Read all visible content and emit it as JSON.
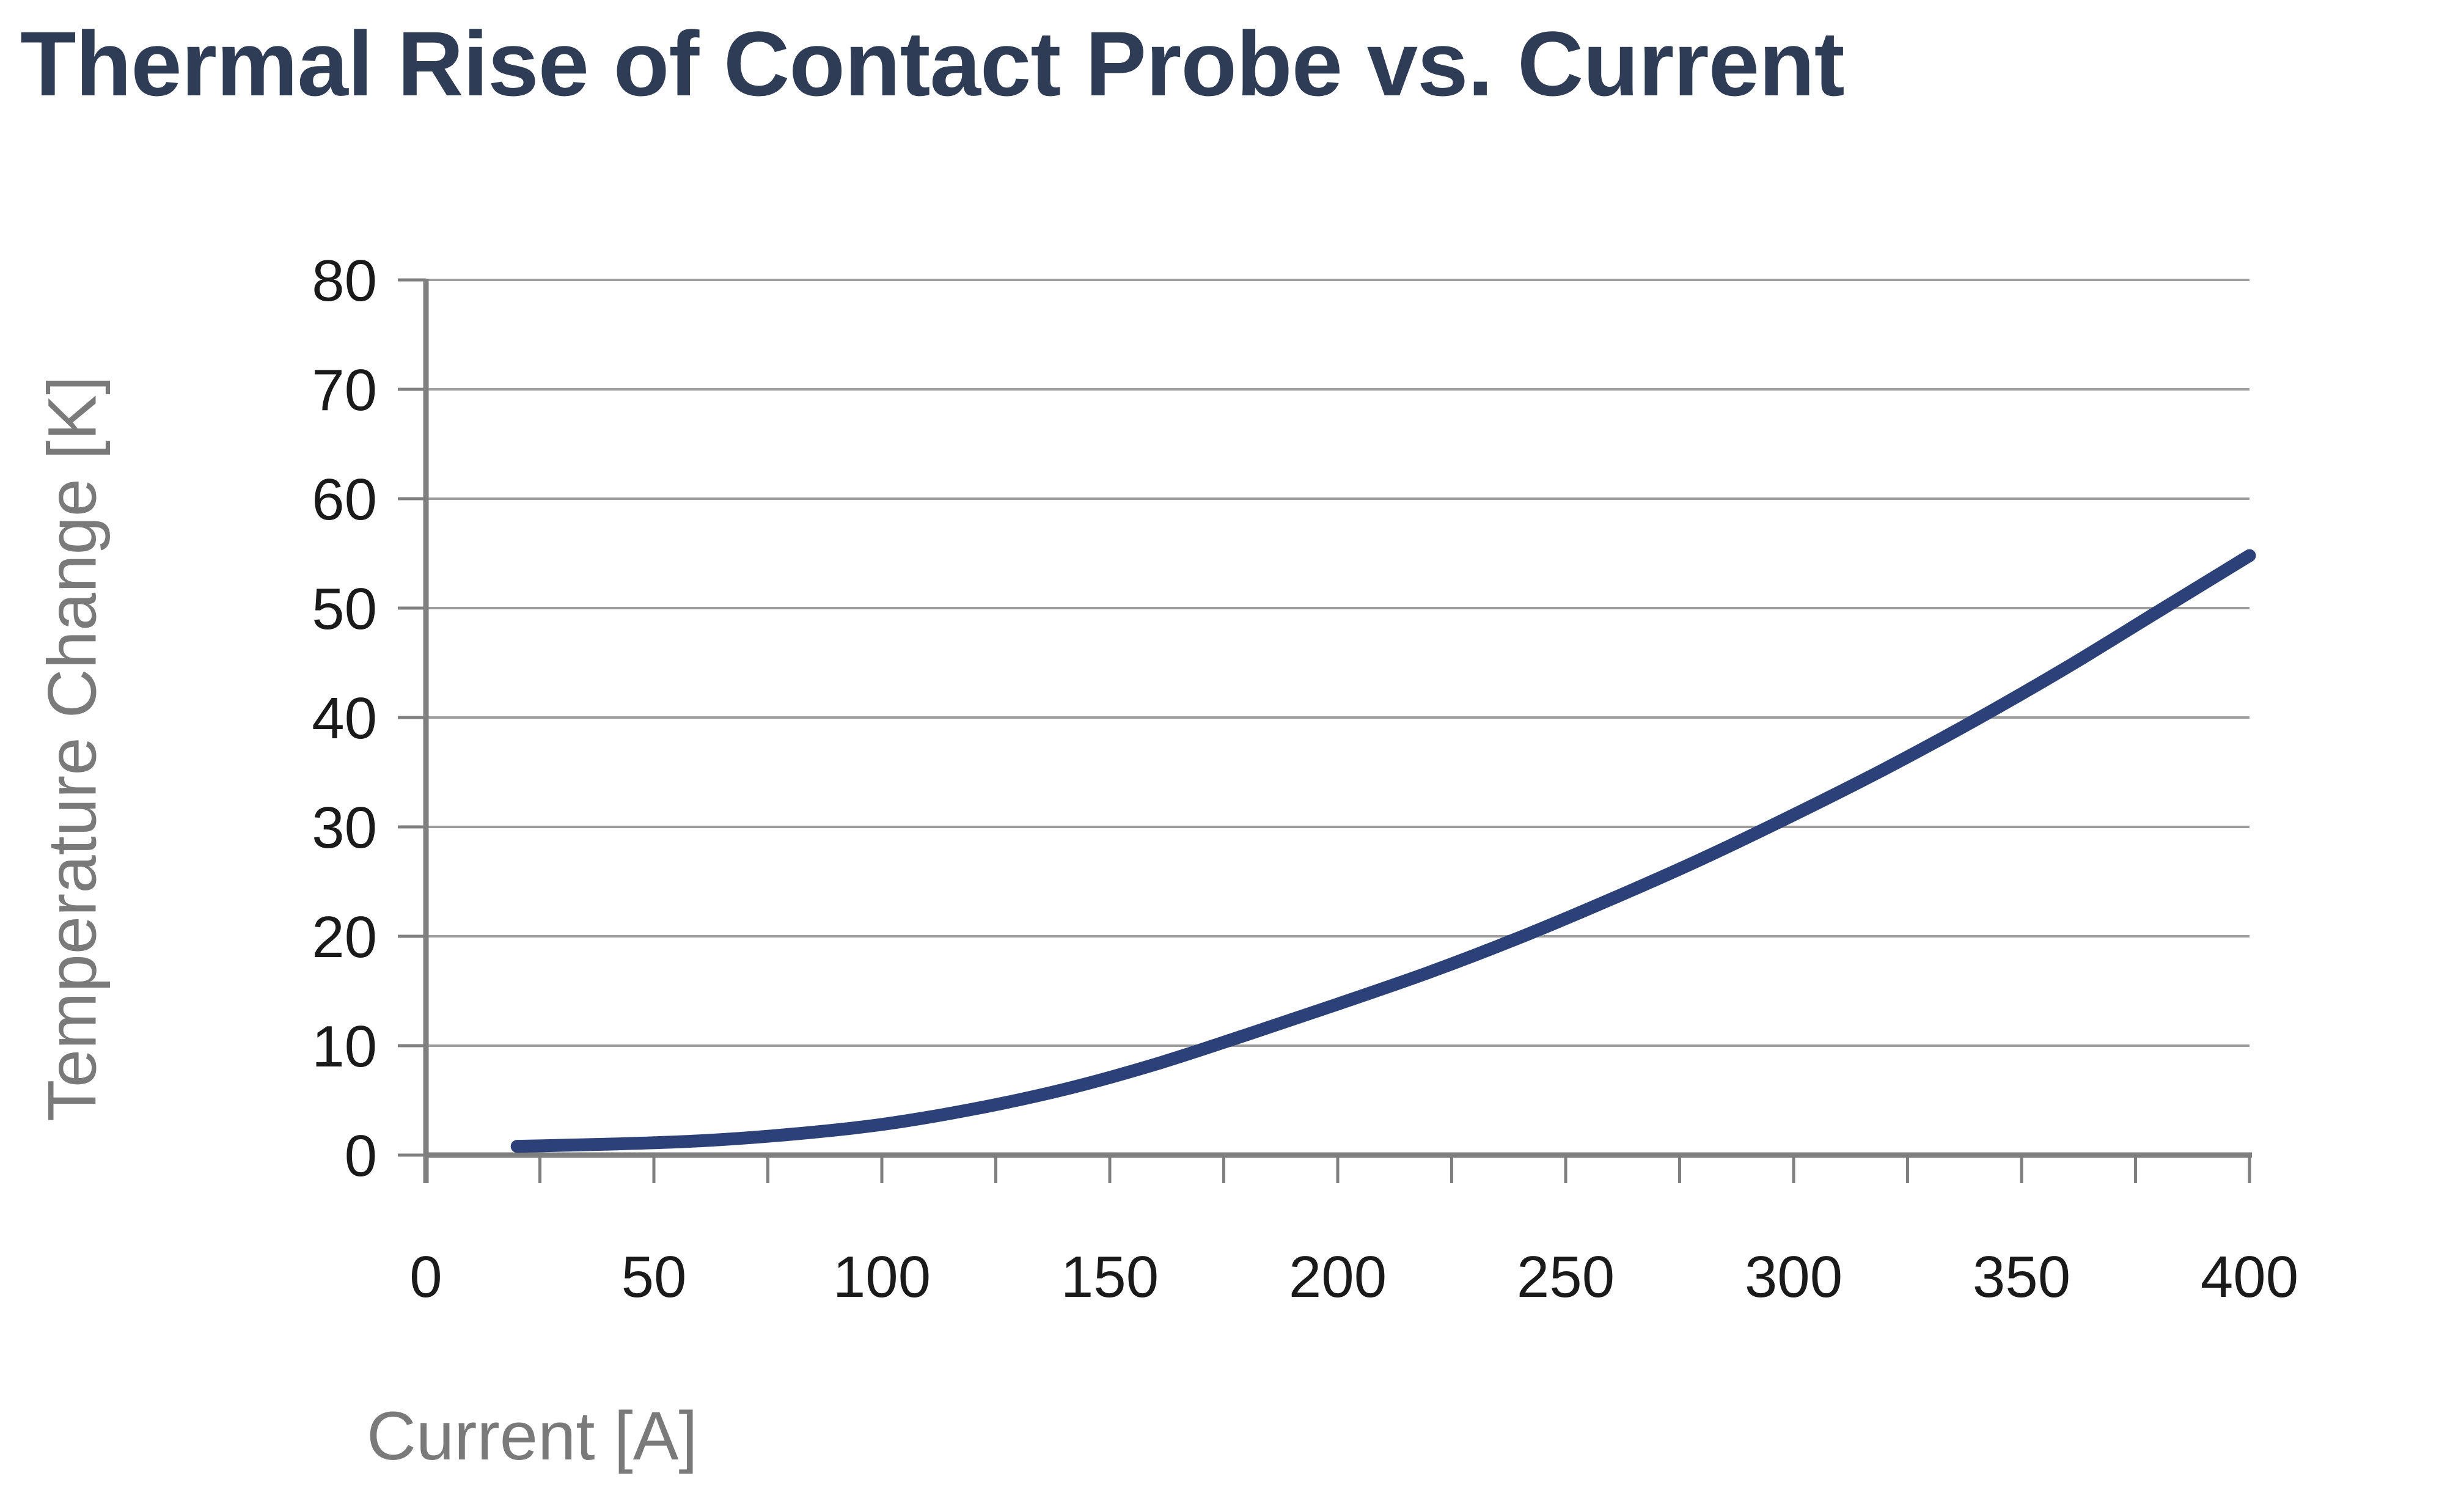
{
  "title": "Thermal Rise of Contact Probe vs. Current",
  "colors": {
    "title": "#2f3c55",
    "line": "#2b4178",
    "gridline": "#9d9d9d",
    "axis": "#7f7f7f",
    "tick_label": "#1a1a1a",
    "axis_title": "#7a7a7a",
    "background": "#ffffff"
  },
  "chart_data": {
    "type": "line",
    "title": "Thermal Rise of Contact Probe vs. Current",
    "xlabel": "Current [A]",
    "ylabel": "Temperature Change [K]",
    "xlim": [
      0,
      400
    ],
    "ylim": [
      0,
      80
    ],
    "x_major_ticks": [
      0,
      50,
      100,
      150,
      200,
      250,
      300,
      350,
      400
    ],
    "x_minor_tick_step": 25,
    "y_ticks": [
      0,
      10,
      20,
      30,
      40,
      50,
      60,
      70,
      80
    ],
    "grid": "horizontal",
    "legend_position": "none",
    "series": [
      {
        "x": [
          20,
          40,
          60,
          80,
          100,
          120,
          140,
          160,
          180,
          200,
          220,
          240,
          260,
          280,
          300,
          320,
          340,
          360,
          380,
          400
        ],
        "y": [
          0.8,
          1.0,
          1.3,
          1.9,
          2.8,
          4.2,
          6.0,
          8.3,
          11.0,
          13.8,
          16.7,
          19.9,
          23.4,
          27.1,
          31.1,
          35.3,
          39.8,
          44.6,
          49.7,
          54.8
        ]
      }
    ]
  }
}
